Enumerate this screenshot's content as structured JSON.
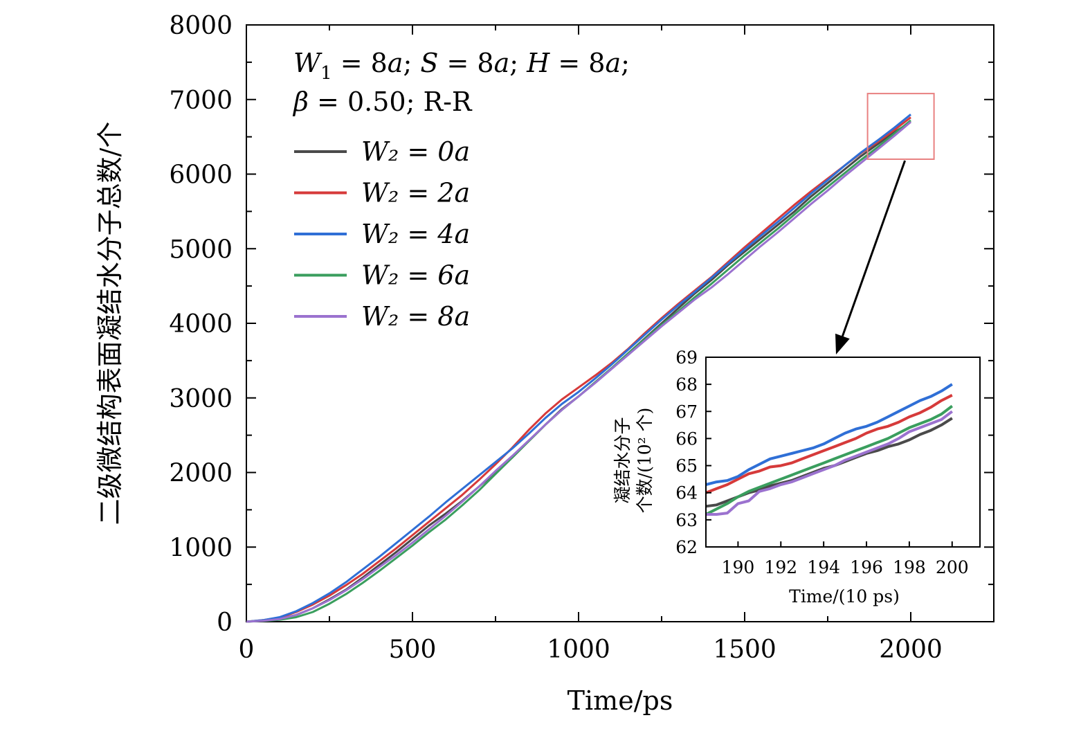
{
  "chart_data": [
    {
      "type": "line",
      "xlabel": "Time/ps",
      "ylabel": "二级微结构表面凝结水分子总数/个",
      "xlim": [
        0,
        2250
      ],
      "ylim": [
        0,
        8000
      ],
      "xticks": [
        0,
        500,
        1000,
        1500,
        2000
      ],
      "yticks": [
        0,
        1000,
        2000,
        3000,
        4000,
        5000,
        6000,
        7000,
        8000
      ],
      "xticks_minor": [
        250,
        750,
        1250,
        1750,
        2250
      ],
      "annotation_line1": "W₁ = 8a; S = 8a; H = 8a;",
      "annotation_line2": "β = 0.50; R-R",
      "legend_position": "upper-left",
      "grid": false,
      "zoom_box": {
        "x": [
          1870,
          2070
        ],
        "y": [
          6200,
          7080
        ],
        "color": "#e88080"
      },
      "series": [
        {
          "name": "W₂ = 0a",
          "color": "#4a4a4a",
          "x": [
            0,
            50,
            100,
            150,
            200,
            250,
            300,
            350,
            400,
            450,
            500,
            550,
            600,
            650,
            700,
            750,
            800,
            850,
            900,
            950,
            1000,
            1050,
            1100,
            1150,
            1200,
            1250,
            1300,
            1350,
            1400,
            1450,
            1500,
            1550,
            1600,
            1650,
            1700,
            1750,
            1800,
            1850,
            1900,
            1950,
            2000
          ],
          "y": [
            0,
            15,
            40,
            90,
            180,
            300,
            430,
            590,
            760,
            930,
            1110,
            1290,
            1450,
            1620,
            1810,
            2000,
            2200,
            2420,
            2640,
            2850,
            3020,
            3210,
            3400,
            3600,
            3800,
            4000,
            4200,
            4400,
            4580,
            4780,
            4960,
            5140,
            5320,
            5500,
            5700,
            5880,
            6060,
            6240,
            6400,
            6560,
            6700
          ]
        },
        {
          "name": "W₂ = 2a",
          "color": "#d63a3a",
          "x": [
            0,
            50,
            100,
            150,
            200,
            250,
            300,
            350,
            400,
            450,
            500,
            550,
            600,
            650,
            700,
            750,
            800,
            850,
            900,
            950,
            1000,
            1050,
            1100,
            1150,
            1200,
            1250,
            1300,
            1350,
            1400,
            1450,
            1500,
            1550,
            1600,
            1650,
            1700,
            1750,
            1800,
            1850,
            1900,
            1950,
            2000
          ],
          "y": [
            0,
            20,
            55,
            130,
            230,
            350,
            490,
            640,
            810,
            980,
            1160,
            1340,
            1520,
            1700,
            1900,
            2110,
            2330,
            2570,
            2790,
            2980,
            3140,
            3300,
            3470,
            3660,
            3870,
            4070,
            4260,
            4440,
            4620,
            4820,
            5020,
            5210,
            5400,
            5590,
            5770,
            5940,
            6110,
            6280,
            6430,
            6590,
            6760
          ]
        },
        {
          "name": "W₂ = 4a",
          "color": "#2f6fd6",
          "x": [
            0,
            50,
            100,
            150,
            200,
            250,
            300,
            350,
            400,
            450,
            500,
            550,
            600,
            650,
            700,
            750,
            800,
            850,
            900,
            950,
            1000,
            1050,
            1100,
            1150,
            1200,
            1250,
            1300,
            1350,
            1400,
            1450,
            1500,
            1550,
            1600,
            1650,
            1700,
            1750,
            1800,
            1850,
            1900,
            1950,
            2000
          ],
          "y": [
            0,
            20,
            60,
            140,
            250,
            380,
            530,
            700,
            870,
            1050,
            1230,
            1410,
            1600,
            1780,
            1960,
            2140,
            2320,
            2520,
            2730,
            2920,
            3080,
            3260,
            3450,
            3650,
            3850,
            4050,
            4240,
            4420,
            4610,
            4800,
            4990,
            5180,
            5360,
            5550,
            5740,
            5920,
            6110,
            6290,
            6450,
            6620,
            6800
          ]
        },
        {
          "name": "W₂ = 6a",
          "color": "#3a9e5e",
          "x": [
            0,
            50,
            100,
            150,
            200,
            250,
            300,
            350,
            400,
            450,
            500,
            550,
            600,
            650,
            700,
            750,
            800,
            850,
            900,
            950,
            1000,
            1050,
            1100,
            1150,
            1200,
            1250,
            1300,
            1350,
            1400,
            1450,
            1500,
            1550,
            1600,
            1650,
            1700,
            1750,
            1800,
            1850,
            1900,
            1950,
            2000
          ],
          "y": [
            0,
            10,
            25,
            60,
            130,
            240,
            370,
            520,
            680,
            850,
            1020,
            1200,
            1370,
            1560,
            1760,
            1980,
            2200,
            2420,
            2640,
            2840,
            3020,
            3210,
            3400,
            3600,
            3790,
            3980,
            4160,
            4350,
            4530,
            4720,
            4910,
            5090,
            5270,
            5460,
            5650,
            5830,
            6010,
            6190,
            6360,
            6540,
            6720
          ]
        },
        {
          "name": "W₂ = 8a",
          "color": "#9b72cf",
          "x": [
            0,
            50,
            100,
            150,
            200,
            250,
            300,
            350,
            400,
            450,
            500,
            550,
            600,
            650,
            700,
            750,
            800,
            850,
            900,
            950,
            1000,
            1050,
            1100,
            1150,
            1200,
            1250,
            1300,
            1350,
            1400,
            1450,
            1500,
            1550,
            1600,
            1650,
            1700,
            1750,
            1800,
            1850,
            1900,
            1950,
            2000
          ],
          "y": [
            0,
            12,
            35,
            90,
            180,
            290,
            420,
            570,
            730,
            890,
            1060,
            1240,
            1420,
            1610,
            1810,
            2020,
            2220,
            2430,
            2640,
            2840,
            3020,
            3200,
            3390,
            3580,
            3770,
            3960,
            4140,
            4320,
            4480,
            4660,
            4850,
            5040,
            5220,
            5410,
            5600,
            5780,
            5970,
            6150,
            6330,
            6510,
            6700
          ]
        }
      ]
    },
    {
      "type": "line",
      "xlabel": "Time/(10 ps)",
      "ylabel_line1": "凝结水分子",
      "ylabel_line2": "个数/(10² 个)",
      "xlim": [
        188.5,
        201.3
      ],
      "ylim": [
        62,
        69
      ],
      "xticks": [
        190,
        192,
        194,
        196,
        198,
        200
      ],
      "yticks": [
        62,
        63,
        64,
        65,
        66,
        67,
        68,
        69
      ],
      "series": [
        {
          "name": "W₂ = 0a",
          "color": "#4a4a4a",
          "x": [
            188.5,
            189,
            189.5,
            190,
            190.5,
            191,
            191.5,
            192,
            192.5,
            193,
            193.5,
            194,
            194.5,
            195,
            195.5,
            196,
            196.5,
            197,
            197.5,
            198,
            198.5,
            199,
            199.5,
            200
          ],
          "y": [
            63.5,
            63.55,
            63.7,
            63.85,
            64.0,
            64.1,
            64.25,
            64.35,
            64.45,
            64.6,
            64.75,
            64.9,
            65.0,
            65.15,
            65.3,
            65.45,
            65.55,
            65.7,
            65.8,
            65.95,
            66.15,
            66.3,
            66.5,
            66.75
          ]
        },
        {
          "name": "W₂ = 2a",
          "color": "#d63a3a",
          "x": [
            188.5,
            189,
            189.5,
            190,
            190.5,
            191,
            191.5,
            192,
            192.5,
            193,
            193.5,
            194,
            194.5,
            195,
            195.5,
            196,
            196.5,
            197,
            197.5,
            198,
            198.5,
            199,
            199.5,
            200
          ],
          "y": [
            64.0,
            64.15,
            64.3,
            64.5,
            64.7,
            64.8,
            64.95,
            65.0,
            65.1,
            65.25,
            65.4,
            65.55,
            65.7,
            65.85,
            66.0,
            66.2,
            66.35,
            66.45,
            66.6,
            66.8,
            66.95,
            67.15,
            67.4,
            67.6
          ]
        },
        {
          "name": "W₂ = 4a",
          "color": "#2f6fd6",
          "x": [
            188.5,
            189,
            189.5,
            190,
            190.5,
            191,
            191.5,
            192,
            192.5,
            193,
            193.5,
            194,
            194.5,
            195,
            195.5,
            196,
            196.5,
            197,
            197.5,
            198,
            198.5,
            199,
            199.5,
            200
          ],
          "y": [
            64.3,
            64.4,
            64.45,
            64.6,
            64.85,
            65.05,
            65.25,
            65.35,
            65.45,
            65.55,
            65.65,
            65.8,
            66.0,
            66.2,
            66.35,
            66.45,
            66.6,
            66.8,
            67.0,
            67.2,
            67.4,
            67.55,
            67.75,
            68.0
          ]
        },
        {
          "name": "W₂ = 6a",
          "color": "#3a9e5e",
          "x": [
            188.5,
            189,
            189.5,
            190,
            190.5,
            191,
            191.5,
            192,
            192.5,
            193,
            193.5,
            194,
            194.5,
            195,
            195.5,
            196,
            196.5,
            197,
            197.5,
            198,
            198.5,
            199,
            199.5,
            200
          ],
          "y": [
            63.2,
            63.4,
            63.6,
            63.85,
            64.05,
            64.2,
            64.35,
            64.5,
            64.65,
            64.8,
            64.95,
            65.1,
            65.25,
            65.4,
            65.55,
            65.7,
            65.85,
            66.0,
            66.2,
            66.4,
            66.55,
            66.7,
            66.9,
            67.2
          ]
        },
        {
          "name": "W₂ = 8a",
          "color": "#9b72cf",
          "x": [
            188.5,
            189,
            189.5,
            190,
            190.5,
            191,
            191.5,
            192,
            192.5,
            193,
            193.5,
            194,
            194.5,
            195,
            195.5,
            196,
            196.5,
            197,
            197.5,
            198,
            198.5,
            199,
            199.5,
            200
          ],
          "y": [
            63.2,
            63.2,
            63.25,
            63.6,
            63.7,
            64.05,
            64.15,
            64.3,
            64.4,
            64.55,
            64.7,
            64.85,
            65.0,
            65.2,
            65.35,
            65.5,
            65.65,
            65.8,
            66.0,
            66.25,
            66.4,
            66.55,
            66.7,
            67.0
          ]
        }
      ]
    }
  ]
}
